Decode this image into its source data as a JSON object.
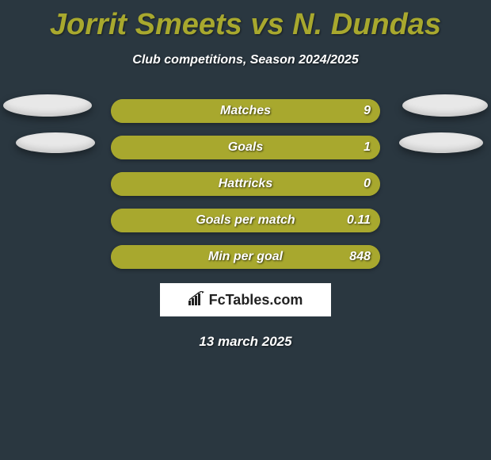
{
  "title": "Jorrit Smeets vs N. Dundas",
  "subtitle": "Club competitions, Season 2024/2025",
  "date": "13 march 2025",
  "logo_text": "FcTables.com",
  "colors": {
    "background": "#2a3740",
    "title_color": "#a8a82e",
    "text_color": "#ffffff",
    "bar_track": "#a8a82e",
    "bar_fill": "#a8a82e",
    "oval_fill": "#e8e8e8",
    "logo_bg": "#ffffff",
    "logo_text": "#222222"
  },
  "typography": {
    "title_fontsize": 38,
    "subtitle_fontsize": 16,
    "row_label_fontsize": 16,
    "date_fontsize": 17,
    "logo_fontsize": 18
  },
  "stats": [
    {
      "label": "Matches",
      "value": "9",
      "fill_pct": 100
    },
    {
      "label": "Goals",
      "value": "1",
      "fill_pct": 100
    },
    {
      "label": "Hattricks",
      "value": "0",
      "fill_pct": 100
    },
    {
      "label": "Goals per match",
      "value": "0.11",
      "fill_pct": 100
    },
    {
      "label": "Min per goal",
      "value": "848",
      "fill_pct": 100
    }
  ],
  "ovals": {
    "left": [
      {
        "class": "oval-left-1"
      },
      {
        "class": "oval-left-2"
      }
    ],
    "right": [
      {
        "class": "oval-right-1"
      },
      {
        "class": "oval-right-2"
      }
    ]
  }
}
